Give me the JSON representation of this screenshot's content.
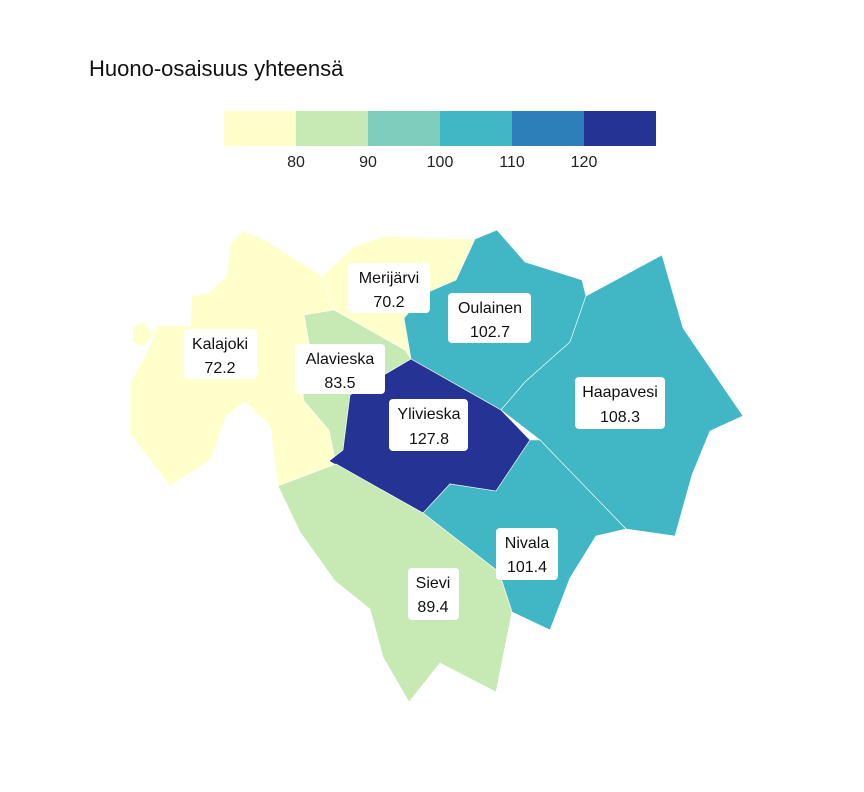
{
  "title": "Huono-osaisuus yhteensä",
  "legend": {
    "colors": [
      "#ffffcc",
      "#c7e9b4",
      "#7fcdbb",
      "#41b6c4",
      "#2c7fb8",
      "#253494"
    ],
    "ticks": [
      "80",
      "90",
      "100",
      "110",
      "120"
    ]
  },
  "regions": [
    {
      "name": "Kalajoki",
      "value": "72.2",
      "color": "#ffffcc"
    },
    {
      "name": "Merijärvi",
      "value": "70.2",
      "color": "#ffffcc"
    },
    {
      "name": "Oulainen",
      "value": "102.7",
      "color": "#41b6c4"
    },
    {
      "name": "Alavieska",
      "value": "83.5",
      "color": "#c7e9b4"
    },
    {
      "name": "Ylivieska",
      "value": "127.8",
      "color": "#253494"
    },
    {
      "name": "Haapavesi",
      "value": "108.3",
      "color": "#41b6c4"
    },
    {
      "name": "Nivala",
      "value": "101.4",
      "color": "#41b6c4"
    },
    {
      "name": "Sievi",
      "value": "89.4",
      "color": "#c7e9b4"
    }
  ]
}
